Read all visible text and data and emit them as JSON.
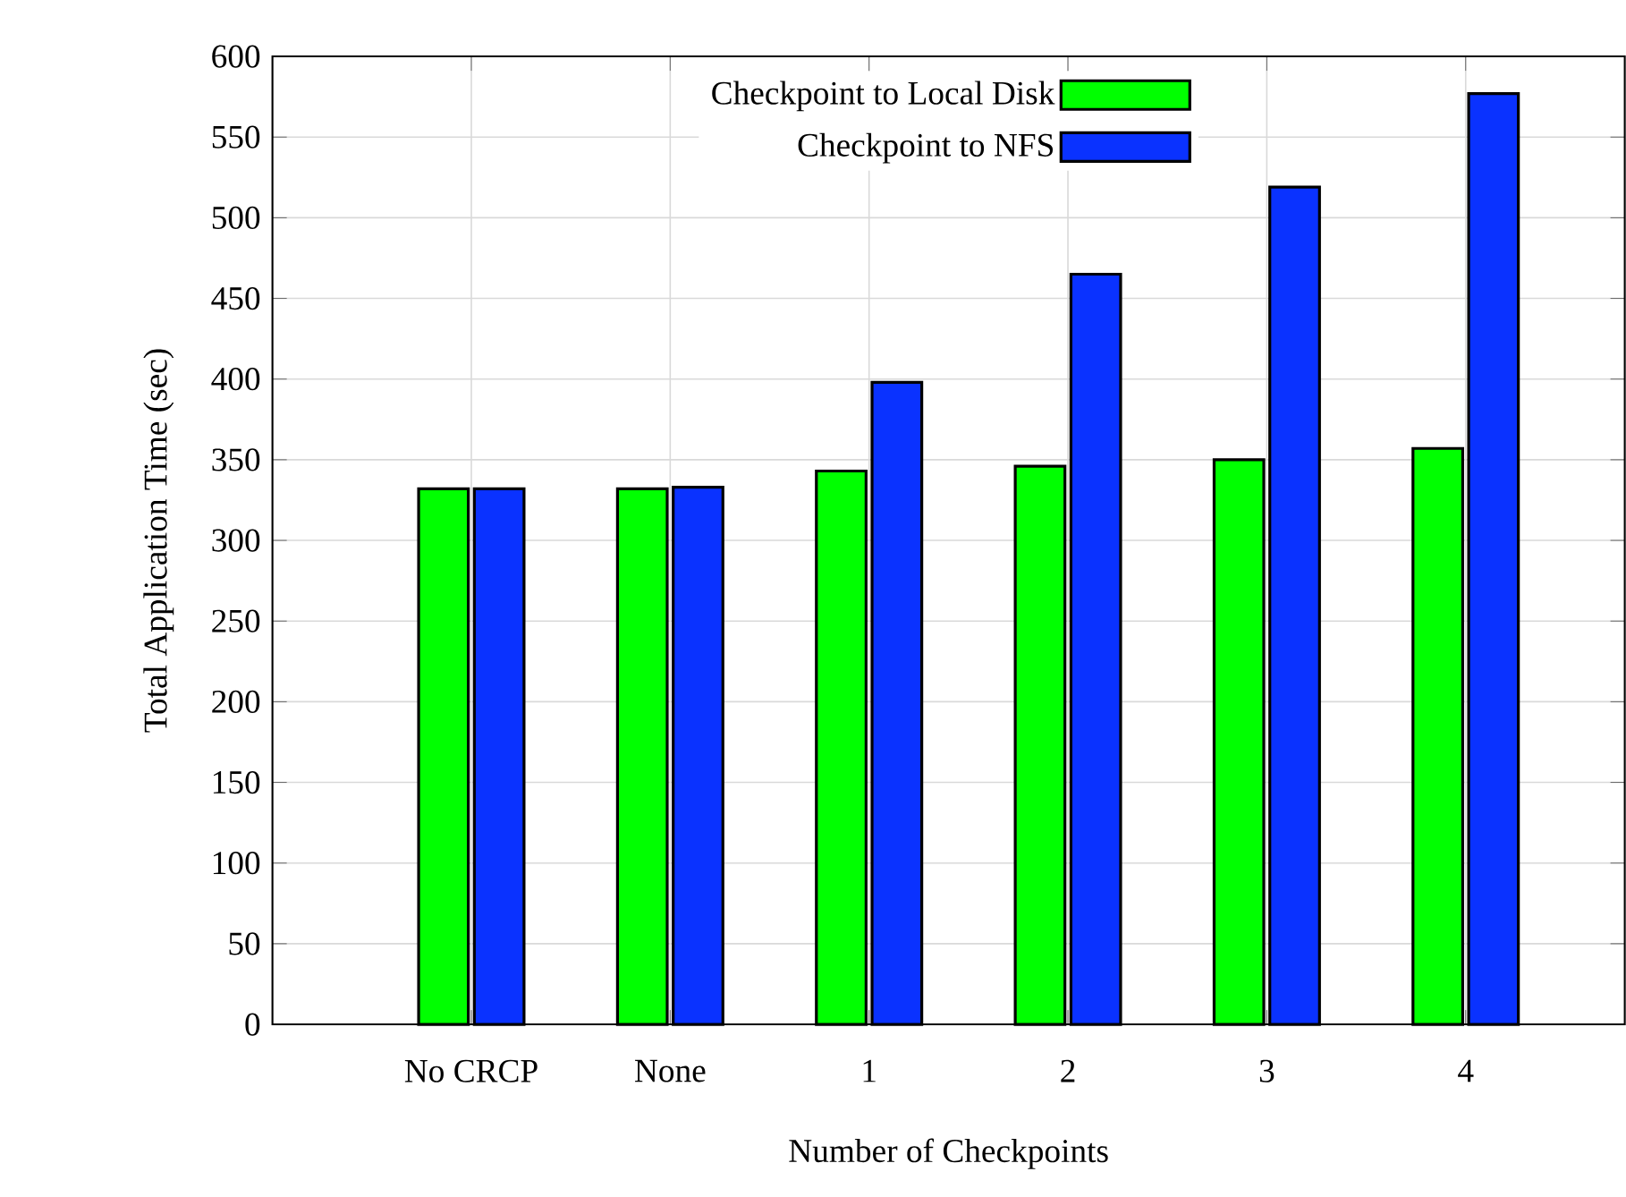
{
  "chart_data": {
    "type": "bar",
    "xlabel": "Number of Checkpoints",
    "ylabel": "Total Application Time (sec)",
    "categories": [
      "No CRCP",
      "None",
      "1",
      "2",
      "3",
      "4"
    ],
    "series": [
      {
        "name": "Checkpoint to Local Disk",
        "color": "#00ff00",
        "values": [
          332,
          332,
          343,
          346,
          350,
          357
        ]
      },
      {
        "name": "Checkpoint to NFS",
        "color": "#0a32ff",
        "values": [
          332,
          333,
          398,
          465,
          519,
          577
        ]
      }
    ],
    "ylim": [
      0,
      600
    ],
    "yticks": [
      0,
      50,
      100,
      150,
      200,
      250,
      300,
      350,
      400,
      450,
      500,
      550,
      600
    ],
    "grid": true,
    "legend": "top"
  }
}
